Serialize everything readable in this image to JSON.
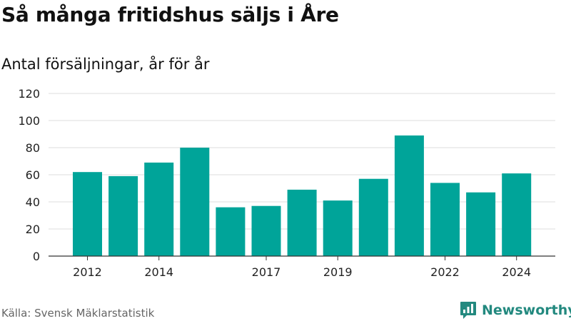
{
  "chart_data": {
    "type": "bar",
    "title": "Så många fritidshus säljs i Åre",
    "subtitle": "Antal försäljningar, år för år",
    "categories": [
      "2012",
      "2013",
      "2014",
      "2015",
      "2016",
      "2017",
      "2018",
      "2019",
      "2020",
      "2021",
      "2022",
      "2023",
      "2024"
    ],
    "tick_labels": [
      "2012",
      "2014",
      "2017",
      "2019",
      "2022",
      "2024"
    ],
    "values": [
      62,
      59,
      69,
      80,
      36,
      37,
      49,
      41,
      57,
      89,
      54,
      47,
      61
    ],
    "ylim": [
      0,
      120
    ],
    "yticks": [
      0,
      20,
      40,
      60,
      80,
      100,
      120
    ],
    "xlabel": "",
    "ylabel": "",
    "grid": true,
    "bar_color": "#00a499",
    "source": "Källa: Svensk Mäklarstatistik"
  },
  "brand": {
    "name": "Newsworthy",
    "icon": "newsworthy-logo-icon",
    "color": "#23897f"
  }
}
